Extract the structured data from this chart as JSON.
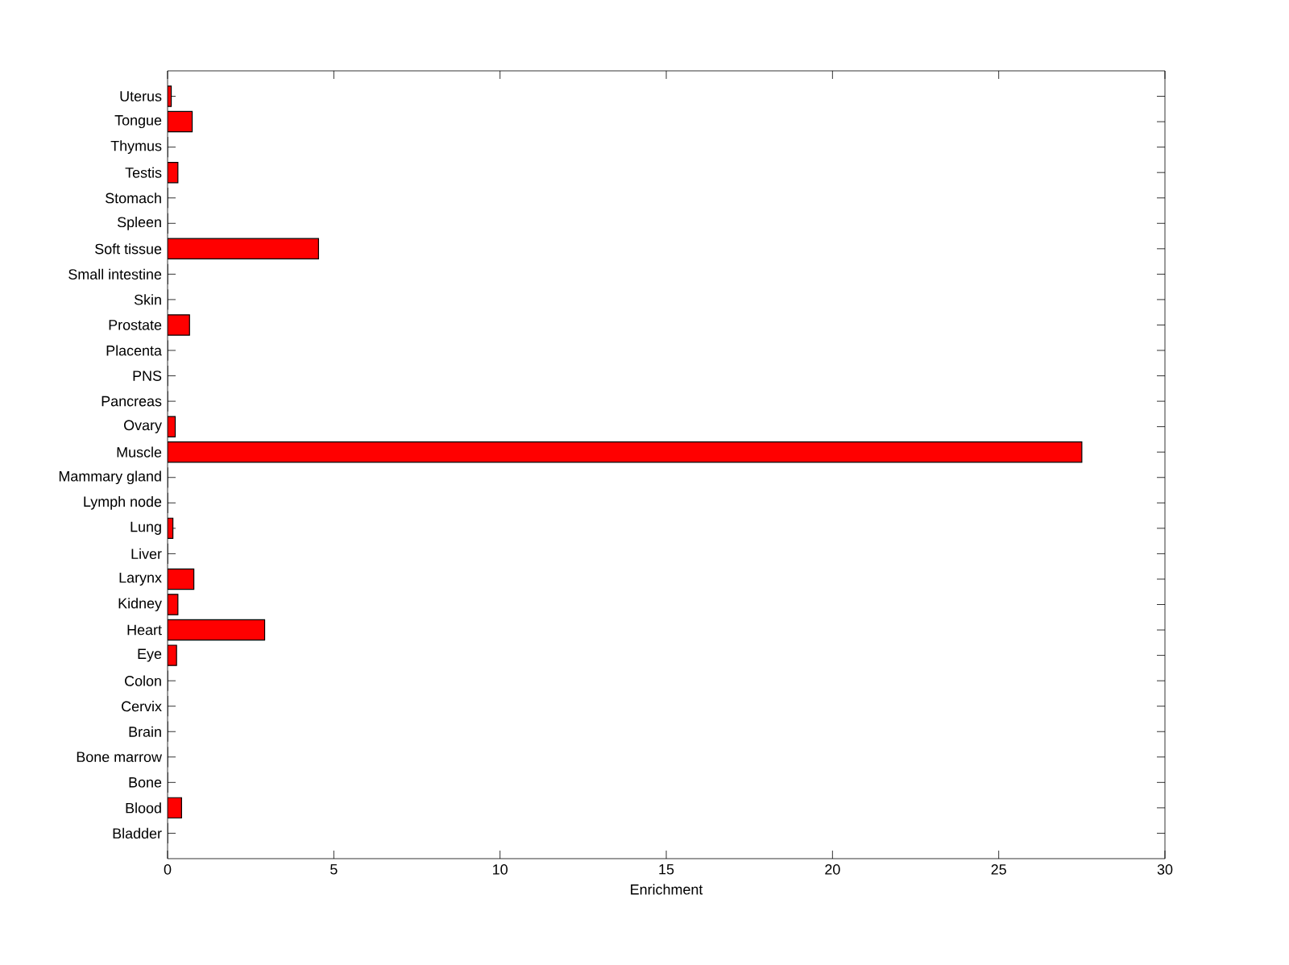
{
  "chart_data": {
    "type": "bar",
    "orientation": "horizontal",
    "xlabel": "Enrichment",
    "categories": [
      "Uterus",
      "Tongue",
      "Thymus",
      "Testis",
      "Stomach",
      "Spleen",
      "Soft tissue",
      "Small intestine",
      "Skin",
      "Prostate",
      "Placenta",
      "PNS",
      "Pancreas",
      "Ovary",
      "Muscle",
      "Mammary gland",
      "Lymph node",
      "Lung",
      "Liver",
      "Larynx",
      "Kidney",
      "Heart",
      "Eye",
      "Colon",
      "Cervix",
      "Brain",
      "Bone marrow",
      "Bone",
      "Blood",
      "Bladder"
    ],
    "values": [
      0.11,
      0.74,
      0,
      0.31,
      0,
      0,
      4.54,
      0,
      0,
      0.66,
      0,
      0,
      0,
      0.23,
      27.5,
      0,
      0,
      0.16,
      0,
      0.79,
      0.31,
      2.92,
      0.27,
      0,
      0,
      0,
      0,
      0,
      0.42,
      0
    ],
    "color": "#ff0000",
    "xlim": [
      0,
      30
    ],
    "xticks": [
      0,
      5,
      10,
      15,
      20,
      25,
      30
    ],
    "grid": false
  }
}
